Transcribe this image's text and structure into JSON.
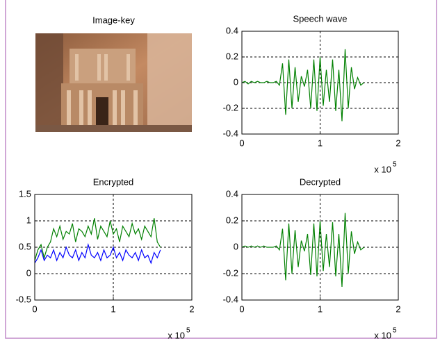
{
  "chart_data": [
    {
      "type": "image",
      "title": "Image-key"
    },
    {
      "type": "line",
      "title": "Speech wave",
      "x": [
        0,
        4000,
        8000,
        12000,
        16000,
        20000,
        24000,
        28000,
        32000,
        36000,
        40000,
        44000,
        48000,
        52000,
        56000,
        60000,
        64000,
        68000,
        72000,
        76000,
        80000,
        84000,
        88000,
        92000,
        96000,
        100000,
        104000,
        108000,
        112000,
        116000,
        120000,
        124000,
        128000,
        132000,
        136000,
        140000,
        144000,
        148000,
        152000,
        156000
      ],
      "series": [
        {
          "color": "#008000",
          "values": [
            0,
            0.01,
            -0.01,
            0.01,
            0,
            0.01,
            0,
            0,
            0.01,
            0,
            0,
            0.01,
            -0.02,
            0.15,
            -0.25,
            0.18,
            -0.2,
            0.12,
            -0.15,
            0.05,
            -0.03,
            0.1,
            -0.2,
            0.18,
            -0.22,
            0.2,
            -0.18,
            0.1,
            -0.15,
            0.18,
            -0.22,
            0.1,
            -0.3,
            0.26,
            -0.2,
            0.12,
            -0.05,
            0.04,
            -0.02,
            0
          ]
        }
      ],
      "xlim": [
        0,
        200000
      ],
      "xticks": [
        0,
        {
          "value": 100000,
          "label": "1"
        },
        {
          "value": 200000,
          "label": "2"
        }
      ],
      "x_scale_label": "x 10",
      "x_scale_exponent": "5",
      "ylim": [
        -0.4,
        0.4
      ],
      "yticks": [
        -0.4,
        -0.2,
        0,
        0.2,
        0.4
      ],
      "grid": true
    },
    {
      "type": "line",
      "title": "Encrypted",
      "x": [
        0,
        4000,
        8000,
        12000,
        16000,
        20000,
        24000,
        28000,
        32000,
        36000,
        40000,
        44000,
        48000,
        52000,
        56000,
        60000,
        64000,
        68000,
        72000,
        76000,
        80000,
        84000,
        88000,
        92000,
        96000,
        100000,
        104000,
        108000,
        112000,
        116000,
        120000,
        124000,
        128000,
        132000,
        136000,
        140000,
        144000,
        148000,
        152000,
        156000,
        160000
      ],
      "series": [
        {
          "color": "#008000",
          "values": [
            0.25,
            0.45,
            0.55,
            0.3,
            0.5,
            0.6,
            0.85,
            0.7,
            0.9,
            0.65,
            0.8,
            0.75,
            0.95,
            0.6,
            0.85,
            0.8,
            0.7,
            0.9,
            0.75,
            1.05,
            0.65,
            0.9,
            0.8,
            0.7,
            1.0,
            0.75,
            0.85,
            0.6,
            0.9,
            0.8,
            0.7,
            0.95,
            0.75,
            0.85,
            0.65,
            0.9,
            0.8,
            0.7,
            1.05,
            0.6,
            0.5
          ]
        },
        {
          "color": "#0000ff",
          "values": [
            0.2,
            0.3,
            0.45,
            0.25,
            0.35,
            0.3,
            0.45,
            0.25,
            0.4,
            0.3,
            0.5,
            0.35,
            0.3,
            0.45,
            0.25,
            0.4,
            0.3,
            0.55,
            0.35,
            0.3,
            0.4,
            0.25,
            0.45,
            0.3,
            0.35,
            0.5,
            0.3,
            0.4,
            0.25,
            0.45,
            0.35,
            0.3,
            0.4,
            0.25,
            0.45,
            0.3,
            0.35,
            0.2,
            0.4,
            0.3,
            0.45
          ]
        }
      ],
      "xlim": [
        0,
        200000
      ],
      "xticks": [
        0,
        {
          "value": 100000,
          "label": "1"
        },
        {
          "value": 200000,
          "label": "2"
        }
      ],
      "x_scale_label": "x 10",
      "x_scale_exponent": "5",
      "ylim": [
        -0.5,
        1.5
      ],
      "yticks": [
        -0.5,
        0,
        0.5,
        1,
        1.5
      ],
      "grid": true
    },
    {
      "type": "line",
      "title": "Decrypted",
      "x": [
        0,
        4000,
        8000,
        12000,
        16000,
        20000,
        24000,
        28000,
        32000,
        36000,
        40000,
        44000,
        48000,
        52000,
        56000,
        60000,
        64000,
        68000,
        72000,
        76000,
        80000,
        84000,
        88000,
        92000,
        96000,
        100000,
        104000,
        108000,
        112000,
        116000,
        120000,
        124000,
        128000,
        132000,
        136000,
        140000,
        144000,
        148000,
        152000,
        156000
      ],
      "series": [
        {
          "color": "#008000",
          "values": [
            0,
            0.01,
            0,
            0.01,
            0,
            0.01,
            0,
            0.01,
            0,
            0,
            0,
            0.01,
            -0.02,
            0.14,
            -0.25,
            0.18,
            -0.2,
            0.13,
            -0.15,
            0.05,
            -0.03,
            0.1,
            -0.21,
            0.18,
            -0.22,
            0.2,
            -0.18,
            0.1,
            -0.15,
            0.19,
            -0.22,
            0.1,
            -0.3,
            0.26,
            -0.2,
            0.12,
            -0.05,
            0.04,
            -0.02,
            0
          ]
        }
      ],
      "xlim": [
        0,
        200000
      ],
      "xticks": [
        0,
        {
          "value": 100000,
          "label": "1"
        },
        {
          "value": 200000,
          "label": "2"
        }
      ],
      "x_scale_label": "x 10",
      "x_scale_exponent": "5",
      "ylim": [
        -0.4,
        0.4
      ],
      "yticks": [
        -0.4,
        -0.2,
        0,
        0.2,
        0.4
      ],
      "grid": true
    }
  ]
}
